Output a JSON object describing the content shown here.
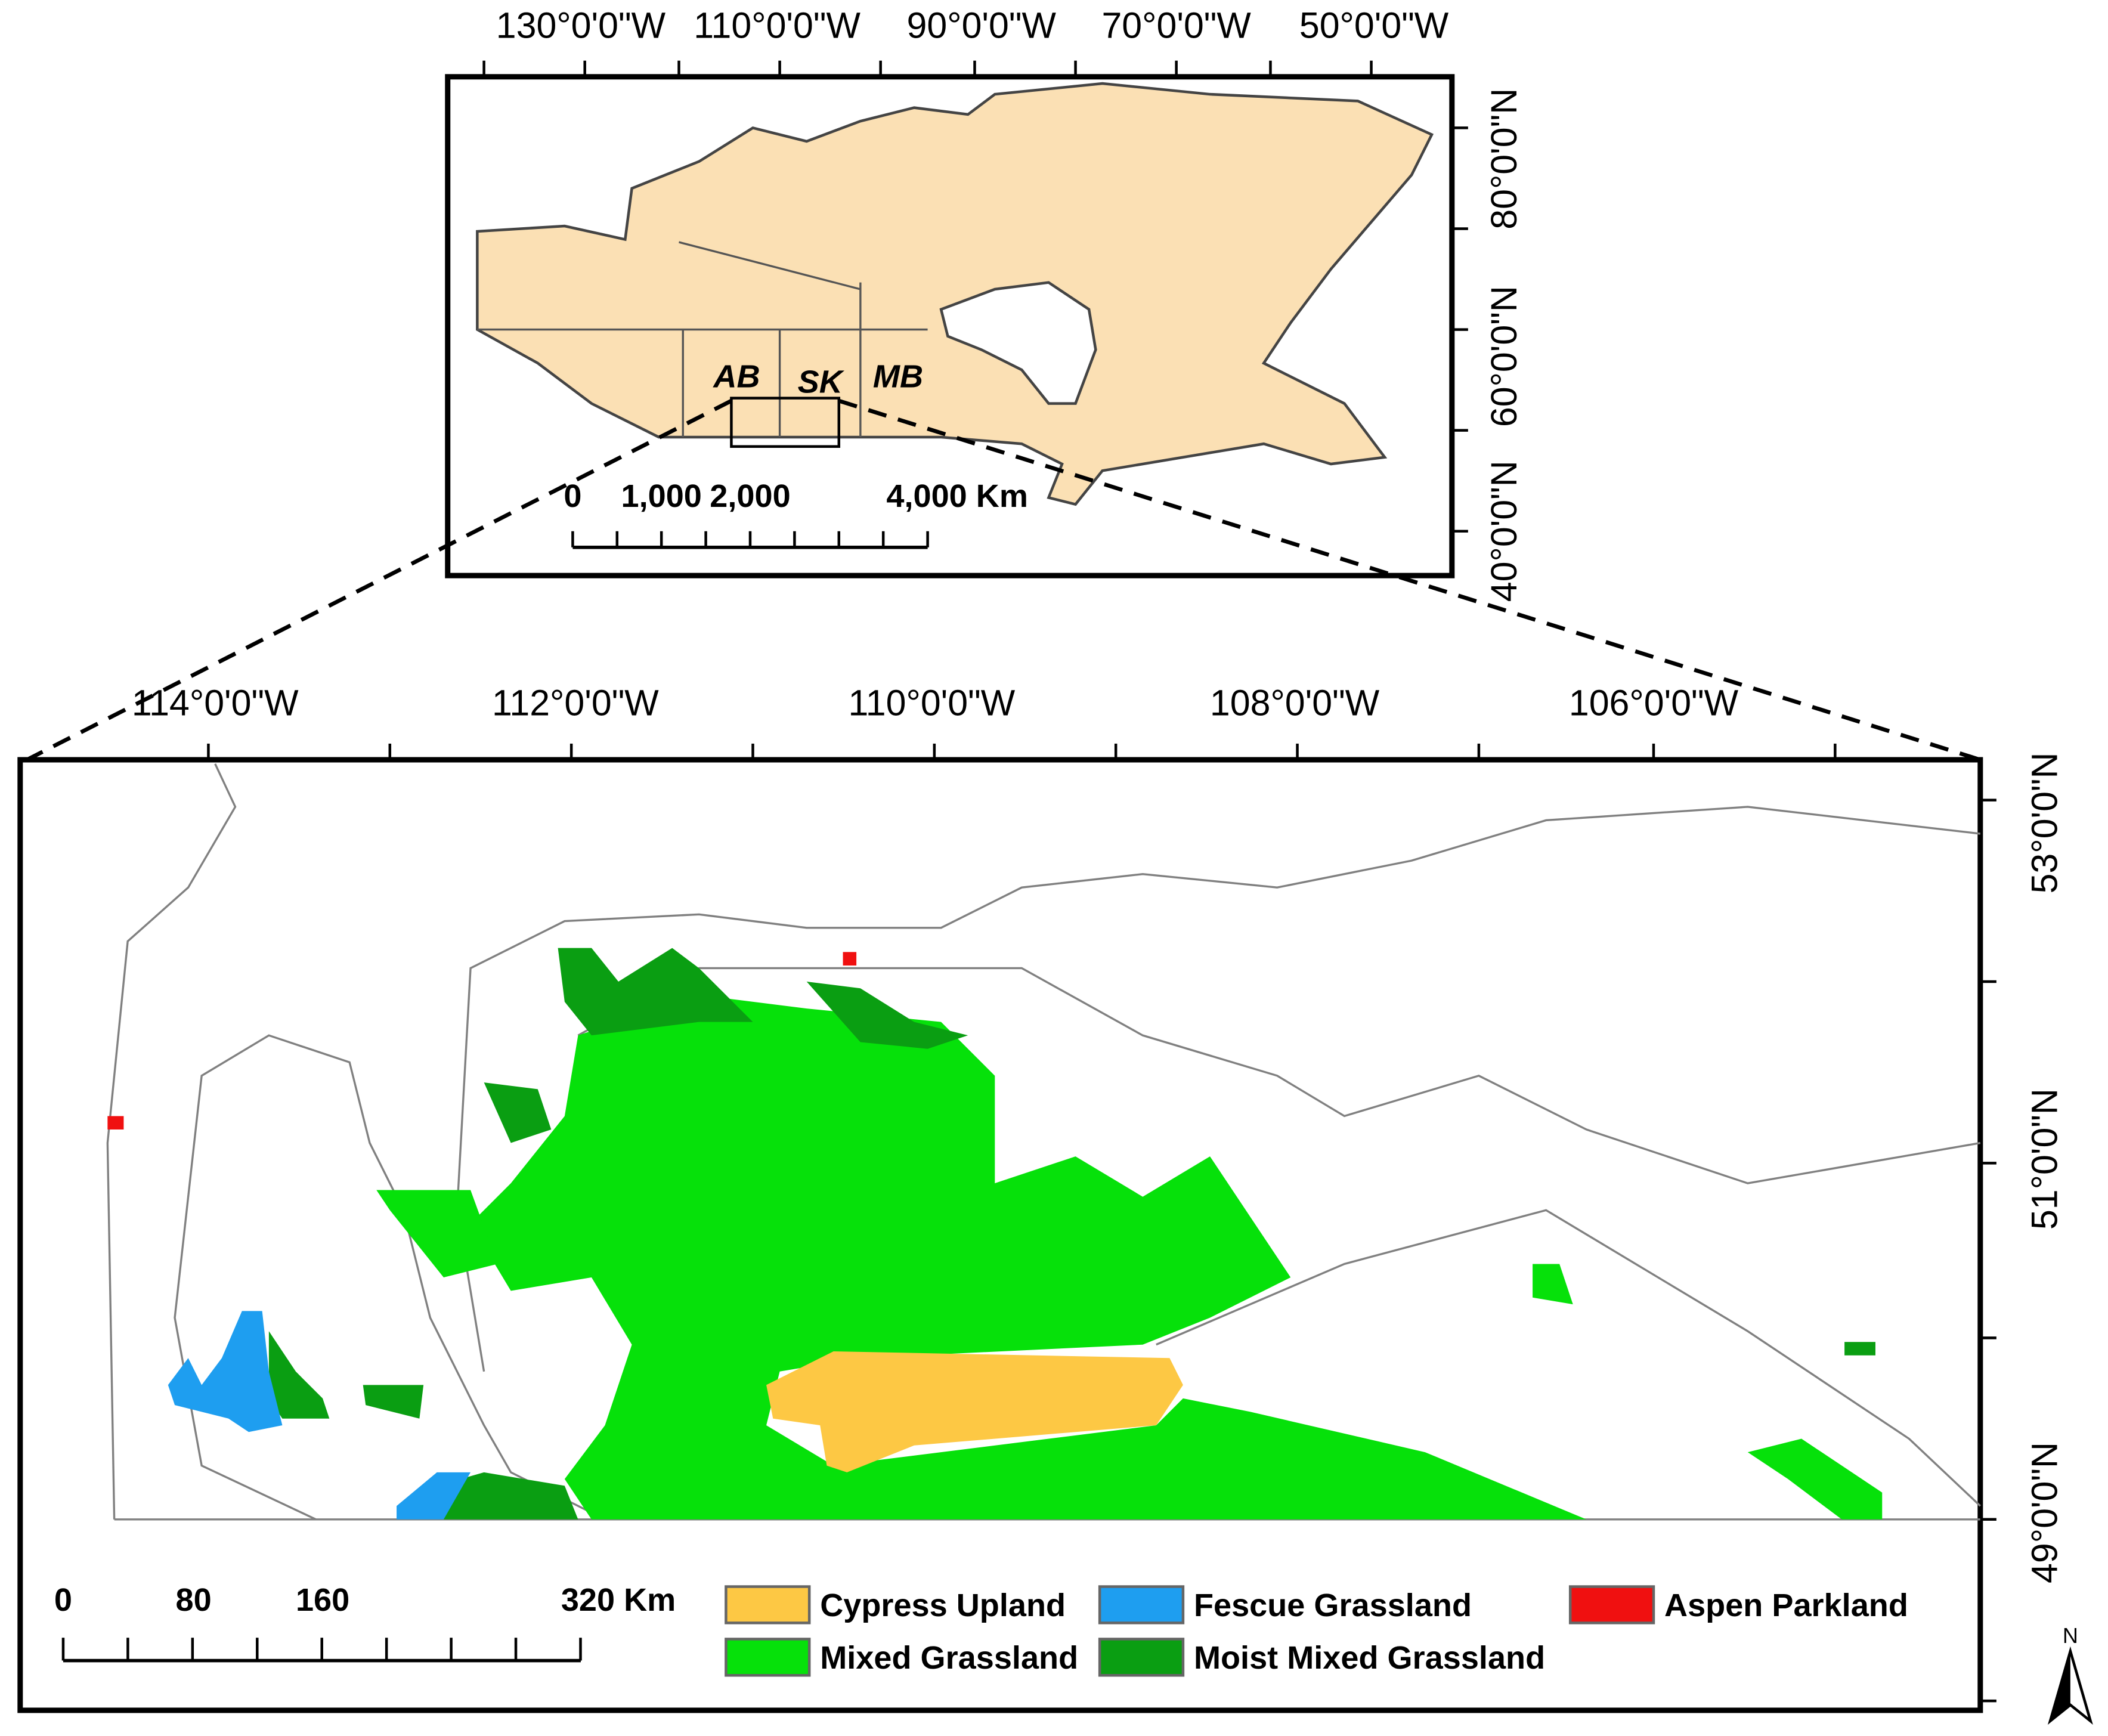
{
  "inset": {
    "lon_labels": [
      "130°0'0\"W",
      "110°0'0\"W",
      "90°0'0\"W",
      "70°0'0\"W",
      "50°0'0\"W"
    ],
    "lat_labels": [
      "80°0'0\"N",
      "60°0'0\"N",
      "40°0'0\"N"
    ],
    "provinces": [
      "AB",
      "SK",
      "MB"
    ],
    "scale_labels": [
      "0",
      "1,000",
      "2,000",
      "4,000 Km"
    ]
  },
  "main": {
    "lon_labels": [
      "114°0'0\"W",
      "112°0'0\"W",
      "110°0'0\"W",
      "108°0'0\"W",
      "106°0'0\"W"
    ],
    "lat_labels": [
      "53°0'0\"N",
      "51°0'0\"N",
      "49°0'0\"N"
    ],
    "scale_labels": [
      "0",
      "80",
      "160",
      "320 Km"
    ]
  },
  "legend": [
    {
      "name": "Cypress Upland",
      "color": "#fdc844"
    },
    {
      "name": "Fescue Grassland",
      "color": "#1e9ef0"
    },
    {
      "name": "Aspen Parkland",
      "color": "#f01010"
    },
    {
      "name": "Mixed Grassland",
      "color": "#06e10a"
    },
    {
      "name": "Moist Mixed Grassland",
      "color": "#0a9e12"
    }
  ],
  "north_arrow": "N"
}
